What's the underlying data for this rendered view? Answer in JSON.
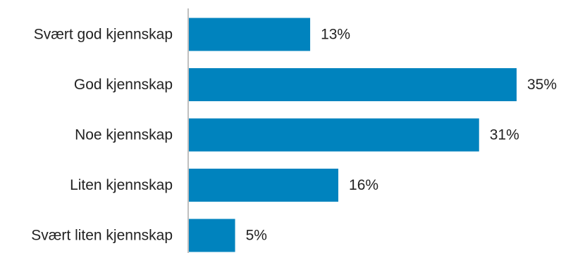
{
  "chart_data": {
    "type": "bar",
    "orientation": "horizontal",
    "categories": [
      "Svært god kjennskap",
      "God kjennskap",
      "Noe kjennskap",
      "Liten kjennskap",
      "Svært liten kjennskap"
    ],
    "values": [
      13,
      35,
      31,
      16,
      5
    ],
    "value_labels": [
      "13%",
      "35%",
      "31%",
      "16%",
      "5%"
    ],
    "unit": "%",
    "xlim": [
      0,
      35
    ],
    "grid": false,
    "legend": "none",
    "bar_color": "#0083BE",
    "axis_color": "#BFBFBF"
  }
}
